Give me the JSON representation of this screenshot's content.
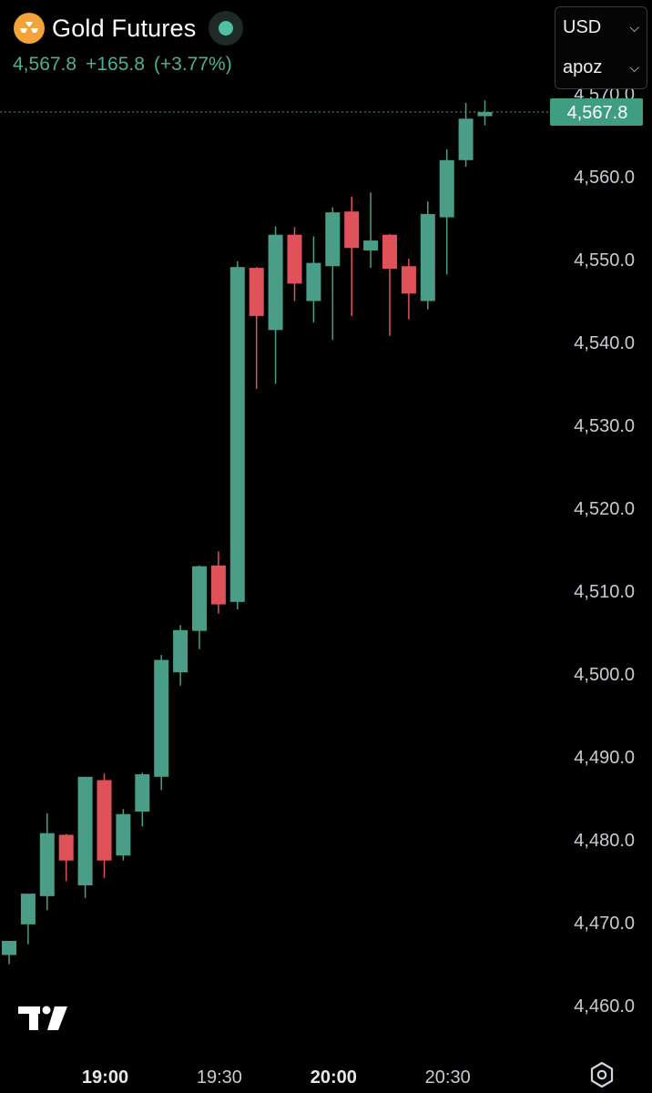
{
  "header": {
    "title": "Gold Futures",
    "last_price": "4,567.8",
    "change": "+165.8",
    "change_pct": "(+3.77%)"
  },
  "controls": {
    "currency": "USD",
    "unit": "apoz"
  },
  "colors": {
    "up": "#4a9e88",
    "down": "#e0525a",
    "price_tag": "#3f9e82",
    "background": "#000000",
    "axis_text": "#c8cbd2"
  },
  "icons": [
    "gold-icon",
    "market-status-icon",
    "tradingview-logo-icon",
    "settings-icon",
    "chevron-down-icon"
  ],
  "chart_data": {
    "type": "candlestick",
    "title": "Gold Futures",
    "ylim": [
      4457,
      4571
    ],
    "yticks": [
      4460,
      4470,
      4480,
      4490,
      4500,
      4510,
      4520,
      4530,
      4540,
      4550,
      4560,
      4570
    ],
    "ytick_labels": [
      "4,460.0",
      "4,470.0",
      "4,480.0",
      "4,490.0",
      "4,500.0",
      "4,510.0",
      "4,520.0",
      "4,530.0",
      "4,540.0",
      "4,550.0",
      "4,560.0",
      "4,570.0"
    ],
    "xtick_labels": [
      "19:00",
      "19:30",
      "20:00",
      "20:30"
    ],
    "xtick_bold": [
      true,
      false,
      true,
      false
    ],
    "xtick_candle_index": [
      5,
      11,
      17,
      23
    ],
    "current_price": 4567.8,
    "current_price_label": "4,567.8",
    "grid": false,
    "candles": [
      {
        "o": 4466.1,
        "h": 4466.8,
        "l": 4465.0,
        "c": 4467.8
      },
      {
        "o": 4469.8,
        "h": 4472.6,
        "l": 4467.4,
        "c": 4473.5
      },
      {
        "o": 4473.2,
        "h": 4483.2,
        "l": 4471.5,
        "c": 4480.8
      },
      {
        "o": 4480.6,
        "h": 4480.7,
        "l": 4475.0,
        "c": 4477.5
      },
      {
        "o": 4474.5,
        "h": 4487.5,
        "l": 4473.0,
        "c": 4487.6
      },
      {
        "o": 4487.2,
        "h": 4488.0,
        "l": 4475.4,
        "c": 4477.5
      },
      {
        "o": 4478.1,
        "h": 4483.7,
        "l": 4477.5,
        "c": 4483.1
      },
      {
        "o": 4483.4,
        "h": 4488.1,
        "l": 4481.6,
        "c": 4487.9
      },
      {
        "o": 4487.6,
        "h": 4502.3,
        "l": 4486.0,
        "c": 4501.7
      },
      {
        "o": 4500.2,
        "h": 4505.9,
        "l": 4498.6,
        "c": 4505.3
      },
      {
        "o": 4505.2,
        "h": 4513.1,
        "l": 4503.0,
        "c": 4513.0
      },
      {
        "o": 4513.1,
        "h": 4514.8,
        "l": 4507.3,
        "c": 4508.4
      },
      {
        "o": 4508.7,
        "h": 4549.8,
        "l": 4507.8,
        "c": 4549.1
      },
      {
        "o": 4549.0,
        "h": 4549.1,
        "l": 4534.4,
        "c": 4543.2
      },
      {
        "o": 4541.5,
        "h": 4554.0,
        "l": 4535.0,
        "c": 4553.0
      },
      {
        "o": 4553.0,
        "h": 4553.9,
        "l": 4545.0,
        "c": 4547.1
      },
      {
        "o": 4545.0,
        "h": 4552.8,
        "l": 4542.4,
        "c": 4549.6
      },
      {
        "o": 4549.2,
        "h": 4556.3,
        "l": 4540.3,
        "c": 4555.7
      },
      {
        "o": 4555.8,
        "h": 4557.6,
        "l": 4543.2,
        "c": 4551.4
      },
      {
        "o": 4551.1,
        "h": 4558.1,
        "l": 4549.0,
        "c": 4552.3
      },
      {
        "o": 4553.0,
        "h": 4553.1,
        "l": 4540.8,
        "c": 4548.9
      },
      {
        "o": 4549.2,
        "h": 4550.1,
        "l": 4542.8,
        "c": 4545.9
      },
      {
        "o": 4545.0,
        "h": 4557.0,
        "l": 4544.0,
        "c": 4555.5
      },
      {
        "o": 4555.1,
        "h": 4563.3,
        "l": 4548.2,
        "c": 4562.0
      },
      {
        "o": 4562.0,
        "h": 4568.9,
        "l": 4561.2,
        "c": 4567.0
      },
      {
        "o": 4567.3,
        "h": 4569.2,
        "l": 4566.2,
        "c": 4567.8
      }
    ]
  }
}
